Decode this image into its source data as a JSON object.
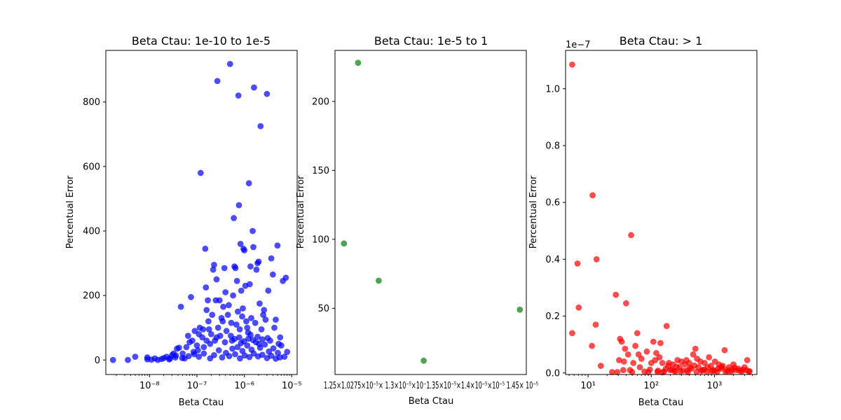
{
  "chart_data": [
    {
      "type": "scatter",
      "title": "Beta Ctau: 1e-10 to 1e-5",
      "xlabel": "Beta Ctau",
      "ylabel": "Percentual Error",
      "xscale": "log",
      "xlim": [
        1.2e-09,
        1.3e-05
      ],
      "ylim": [
        -45,
        960
      ],
      "color": "#0000ff",
      "xticks": [
        {
          "value": 1e-08,
          "label": "10⁻⁸"
        },
        {
          "value": 1e-07,
          "label": "10⁻⁷"
        },
        {
          "value": 1e-06,
          "label": "10⁻⁶"
        },
        {
          "value": 1e-05,
          "label": "10⁻⁵"
        }
      ],
      "yticks": [
        {
          "value": 0,
          "label": "0"
        },
        {
          "value": 200,
          "label": "200"
        },
        {
          "value": 400,
          "label": "400"
        },
        {
          "value": 600,
          "label": "600"
        },
        {
          "value": 800,
          "label": "800"
        }
      ],
      "points": [
        [
          1.7e-09,
          0
        ],
        [
          3.5e-09,
          0
        ],
        [
          5e-09,
          10
        ],
        [
          9e-09,
          2
        ],
        [
          9e-09,
          8
        ],
        [
          1.1e-08,
          1
        ],
        [
          1.3e-08,
          5
        ],
        [
          1.5e-08,
          0
        ],
        [
          1.8e-08,
          3
        ],
        [
          2e-08,
          6
        ],
        [
          2.3e-08,
          10
        ],
        [
          2.6e-08,
          2
        ],
        [
          3e-08,
          15
        ],
        [
          3.2e-08,
          20
        ],
        [
          3.5e-08,
          8
        ],
        [
          3.8e-08,
          35
        ],
        [
          4.2e-08,
          38
        ],
        [
          4.6e-08,
          165
        ],
        [
          5e-08,
          20
        ],
        [
          5.5e-08,
          5
        ],
        [
          6e-08,
          40
        ],
        [
          6.5e-08,
          75
        ],
        [
          7e-08,
          55
        ],
        [
          7.5e-08,
          195
        ],
        [
          8e-08,
          60
        ],
        [
          8.5e-08,
          25
        ],
        [
          9e-08,
          90
        ],
        [
          1e-07,
          45
        ],
        [
          1.05e-07,
          30
        ],
        [
          1.1e-07,
          80
        ],
        [
          1.15e-07,
          100
        ],
        [
          1.2e-07,
          580
        ],
        [
          1.3e-07,
          70
        ],
        [
          1.35e-07,
          95
        ],
        [
          1.4e-07,
          40
        ],
        [
          1.5e-07,
          345
        ],
        [
          1.55e-07,
          225
        ],
        [
          1.6e-07,
          155
        ],
        [
          1.7e-07,
          185
        ],
        [
          1.75e-07,
          120
        ],
        [
          1.8e-07,
          95
        ],
        [
          1.9e-07,
          50
        ],
        [
          2e-07,
          80
        ],
        [
          2.1e-07,
          140
        ],
        [
          2.2e-07,
          280
        ],
        [
          2.3e-07,
          295
        ],
        [
          2.4e-07,
          60
        ],
        [
          2.5e-07,
          185
        ],
        [
          2.6e-07,
          250
        ],
        [
          2.7e-07,
          865
        ],
        [
          2.8e-07,
          100
        ],
        [
          3e-07,
          185
        ],
        [
          3.1e-07,
          75
        ],
        [
          3.3e-07,
          130
        ],
        [
          3.5e-07,
          120
        ],
        [
          3.6e-07,
          165
        ],
        [
          3.8e-07,
          285
        ],
        [
          4e-07,
          210
        ],
        [
          4.2e-07,
          90
        ],
        [
          4.5e-07,
          140
        ],
        [
          4.7e-07,
          170
        ],
        [
          5e-07,
          918
        ],
        [
          5.3e-07,
          115
        ],
        [
          5.5e-07,
          60
        ],
        [
          5.8e-07,
          200
        ],
        [
          6e-07,
          440
        ],
        [
          6.2e-07,
          290
        ],
        [
          6.5e-07,
          285
        ],
        [
          6.8e-07,
          110
        ],
        [
          7e-07,
          245
        ],
        [
          7.3e-07,
          150
        ],
        [
          7.5e-07,
          820
        ],
        [
          7.7e-07,
          480
        ],
        [
          8e-07,
          95
        ],
        [
          8.3e-07,
          360
        ],
        [
          8.6e-07,
          215
        ],
        [
          9e-07,
          135
        ],
        [
          9.3e-07,
          160
        ],
        [
          9.6e-07,
          345
        ],
        [
          1e-06,
          340
        ],
        [
          1.05e-06,
          230
        ],
        [
          1.1e-06,
          120
        ],
        [
          1.15e-06,
          100
        ],
        [
          1.2e-06,
          85
        ],
        [
          1.25e-06,
          548
        ],
        [
          1.3e-06,
          235
        ],
        [
          1.35e-06,
          290
        ],
        [
          1.4e-06,
          130
        ],
        [
          1.5e-06,
          400
        ],
        [
          1.55e-06,
          350
        ],
        [
          1.6e-06,
          845
        ],
        [
          1.7e-06,
          115
        ],
        [
          1.8e-06,
          280
        ],
        [
          1.9e-06,
          300
        ],
        [
          2e-06,
          305
        ],
        [
          2.1e-06,
          175
        ],
        [
          2.2e-06,
          725
        ],
        [
          2.3e-06,
          95
        ],
        [
          2.5e-06,
          140
        ],
        [
          2.6e-06,
          155
        ],
        [
          2.8e-06,
          125
        ],
        [
          3e-06,
          825
        ],
        [
          3.2e-06,
          215
        ],
        [
          3.5e-06,
          60
        ],
        [
          3.7e-06,
          315
        ],
        [
          4e-06,
          265
        ],
        [
          4.3e-06,
          100
        ],
        [
          4.6e-06,
          125
        ],
        [
          5e-06,
          355
        ],
        [
          5.3e-06,
          50
        ],
        [
          5.7e-06,
          70
        ],
        [
          6e-06,
          45
        ],
        [
          6.5e-06,
          245
        ],
        [
          7e-06,
          10
        ],
        [
          7.5e-06,
          255
        ],
        [
          8e-06,
          25
        ],
        [
          1.1e-07,
          10
        ],
        [
          1.4e-07,
          20
        ],
        [
          1.9e-07,
          5
        ],
        [
          2.3e-07,
          15
        ],
        [
          2.9e-07,
          30
        ],
        [
          3.4e-07,
          8
        ],
        [
          4.1e-07,
          22
        ],
        [
          4.8e-07,
          12
        ],
        [
          5.6e-07,
          35
        ],
        [
          6.4e-07,
          18
        ],
        [
          7.2e-07,
          40
        ],
        [
          8.1e-07,
          5
        ],
        [
          9.1e-07,
          28
        ],
        [
          1.02e-06,
          14
        ],
        [
          1.15e-06,
          45
        ],
        [
          1.28e-06,
          9
        ],
        [
          1.42e-06,
          32
        ],
        [
          1.58e-06,
          20
        ],
        [
          1.76e-06,
          55
        ],
        [
          1.95e-06,
          11
        ],
        [
          2.15e-06,
          38
        ],
        [
          2.4e-06,
          16
        ],
        [
          2.7e-06,
          48
        ],
        [
          3e-06,
          6
        ],
        [
          3.3e-06,
          26
        ],
        [
          3.7e-06,
          13
        ],
        [
          4.1e-06,
          36
        ],
        [
          4.6e-06,
          4
        ],
        [
          5.1e-06,
          22
        ],
        [
          5.6e-06,
          8
        ],
        [
          6.2e-07,
          65
        ],
        [
          7.8e-07,
          70
        ],
        [
          9.8e-07,
          58
        ],
        [
          1.22e-06,
          66
        ],
        [
          1.52e-06,
          62
        ],
        [
          1.9e-06,
          72
        ],
        [
          2.4e-06,
          64
        ],
        [
          3.1e-06,
          68
        ],
        [
          8.8e-08,
          18
        ],
        [
          6.7e-08,
          12
        ],
        [
          4.9e-08,
          6
        ],
        [
          3.6e-08,
          14
        ],
        [
          2.7e-08,
          4
        ],
        [
          1.6e-07,
          60
        ],
        [
          2.6e-07,
          70
        ],
        [
          3.9e-07,
          55
        ],
        [
          5.2e-07,
          75
        ],
        [
          8.5e-07,
          52
        ],
        [
          1.35e-06,
          78
        ],
        [
          2.05e-06,
          50
        ]
      ]
    },
    {
      "type": "scatter",
      "title": "Beta Ctau: 1e-5 to 1",
      "xlabel": "Beta Ctau",
      "ylabel": "Percentual Error",
      "xscale": "log",
      "xlim": [
        1.218e-05,
        1.582e-05
      ],
      "ylim": [
        2,
        237
      ],
      "color": "#008000",
      "xticklabels_text": "1.25×1.0275×10⁻⁵× 1.3×10⁻⁵×10⁻1.35×10⁻⁵×1.4×10⁻⁵×10⁻⁵ 1.45× 10⁻⁵",
      "yticks": [
        {
          "value": 50,
          "label": "50"
        },
        {
          "value": 100,
          "label": "100"
        },
        {
          "value": 150,
          "label": "150"
        },
        {
          "value": 200,
          "label": "200"
        }
      ],
      "points": [
        [
          1.233e-05,
          97
        ],
        [
          1.257e-05,
          228
        ],
        [
          1.293e-05,
          70
        ],
        [
          1.375e-05,
          12
        ],
        [
          1.568e-05,
          49
        ]
      ]
    },
    {
      "type": "scatter",
      "title": "Beta Ctau: > 1",
      "xlabel": "Beta Ctau",
      "ylabel": "Percentual Error",
      "xscale": "log",
      "xlim": [
        4.4,
        4700
      ],
      "ylim": [
        -5.5e-10,
        1.135e-07
      ],
      "ytick_offset_label": "1e−7",
      "color": "#ff0000",
      "xticks": [
        {
          "value": 10,
          "label": "10¹"
        },
        {
          "value": 100,
          "label": "10²"
        },
        {
          "value": 1000,
          "label": "10³"
        }
      ],
      "yticks": [
        {
          "value": 0,
          "label": "0.0"
        },
        {
          "value": 2e-08,
          "label": "0.2"
        },
        {
          "value": 4e-08,
          "label": "0.4"
        },
        {
          "value": 6e-08,
          "label": "0.6"
        },
        {
          "value": 8e-08,
          "label": "0.8"
        },
        {
          "value": 1e-07,
          "label": "1.0"
        }
      ],
      "points": [
        [
          5.6,
          1.085e-07
        ],
        [
          5.6,
          1.4e-08
        ],
        [
          6.8,
          3.85e-08
        ],
        [
          7.1,
          2.3e-08
        ],
        [
          11.8,
          6.25e-08
        ],
        [
          11.5,
          9.5e-09
        ],
        [
          13.6,
          4e-08
        ],
        [
          13.2,
          1.7e-08
        ],
        [
          15.9,
          2.5e-09
        ],
        [
          24,
          3e-10
        ],
        [
          27.5,
          2.75e-08
        ],
        [
          29,
          3e-10
        ],
        [
          31,
          4.5e-09
        ],
        [
          32,
          1.2e-08
        ],
        [
          34,
          1.1e-08
        ],
        [
          36,
          1e-09
        ],
        [
          37,
          4e-09
        ],
        [
          38.5,
          8.5e-09
        ],
        [
          40,
          2.45e-08
        ],
        [
          43,
          6.5e-09
        ],
        [
          46,
          1e-09
        ],
        [
          48,
          4.85e-08
        ],
        [
          50,
          3e-10
        ],
        [
          52,
          3.5e-09
        ],
        [
          56,
          9.5e-09
        ],
        [
          60,
          1.4e-08
        ],
        [
          63,
          6.5e-09
        ],
        [
          66,
          2e-09
        ],
        [
          70,
          5e-09
        ],
        [
          78,
          5e-10
        ],
        [
          85,
          7.5e-09
        ],
        [
          90,
          3e-10
        ],
        [
          100,
          3.5e-09
        ],
        [
          108,
          1.1e-08
        ],
        [
          115,
          4.5e-09
        ],
        [
          120,
          7e-09
        ],
        [
          128,
          8e-10
        ],
        [
          135,
          5.5e-09
        ],
        [
          140,
          1.05e-08
        ],
        [
          150,
          3.5e-09
        ],
        [
          160,
          5e-10
        ],
        [
          175,
          1.65e-08
        ],
        [
          185,
          2.5e-09
        ],
        [
          200,
          1e-09
        ],
        [
          220,
          3e-09
        ],
        [
          240,
          5e-10
        ],
        [
          260,
          4.5e-09
        ],
        [
          280,
          2e-09
        ],
        [
          300,
          4e-09
        ],
        [
          320,
          8e-10
        ],
        [
          340,
          3e-09
        ],
        [
          360,
          4.5e-09
        ],
        [
          380,
          3e-10
        ],
        [
          400,
          3.5e-09
        ],
        [
          430,
          1.5e-09
        ],
        [
          460,
          6.5e-09
        ],
        [
          500,
          8.5e-09
        ],
        [
          530,
          5e-09
        ],
        [
          560,
          2e-09
        ],
        [
          600,
          4e-09
        ],
        [
          650,
          1e-09
        ],
        [
          700,
          3.5e-09
        ],
        [
          760,
          5e-10
        ],
        [
          820,
          5.5e-09
        ],
        [
          880,
          2.5e-09
        ],
        [
          950,
          1e-09
        ],
        [
          1020,
          4e-09
        ],
        [
          1100,
          3e-10
        ],
        [
          1180,
          3e-09
        ],
        [
          1260,
          1.5e-09
        ],
        [
          1350,
          2.5e-09
        ],
        [
          1450,
          8e-09
        ],
        [
          1550,
          1e-09
        ],
        [
          1700,
          2e-09
        ],
        [
          1850,
          5e-10
        ],
        [
          2000,
          3e-09
        ],
        [
          2200,
          1e-09
        ],
        [
          2400,
          1.5e-09
        ],
        [
          2700,
          5e-10
        ],
        [
          3000,
          2e-09
        ],
        [
          3300,
          4.5e-09
        ],
        [
          3500,
          5e-10
        ],
        [
          150,
          2e-10
        ],
        [
          210,
          1.2e-09
        ],
        [
          290,
          6e-10
        ],
        [
          410,
          1.8e-09
        ],
        [
          520,
          4e-10
        ],
        [
          690,
          1.2e-09
        ],
        [
          900,
          6e-10
        ],
        [
          1150,
          1.6e-09
        ],
        [
          1500,
          4e-10
        ],
        [
          1900,
          1.2e-09
        ],
        [
          2500,
          8e-10
        ],
        [
          3200,
          1e-09
        ],
        [
          250,
          2.2e-09
        ],
        [
          370,
          9e-10
        ],
        [
          480,
          2.6e-09
        ],
        [
          620,
          7e-10
        ],
        [
          780,
          2e-09
        ],
        [
          1000,
          8e-10
        ],
        [
          1300,
          2.1e-09
        ],
        [
          1650,
          7e-10
        ],
        [
          2100,
          1.8e-09
        ],
        [
          2800,
          1.1e-09
        ],
        [
          3600,
          6e-10
        ],
        [
          95,
          1.2e-09
        ],
        [
          125,
          4e-10
        ],
        [
          170,
          1.5e-09
        ],
        [
          190,
          3.5e-09
        ],
        [
          230,
          8e-10
        ]
      ]
    }
  ]
}
